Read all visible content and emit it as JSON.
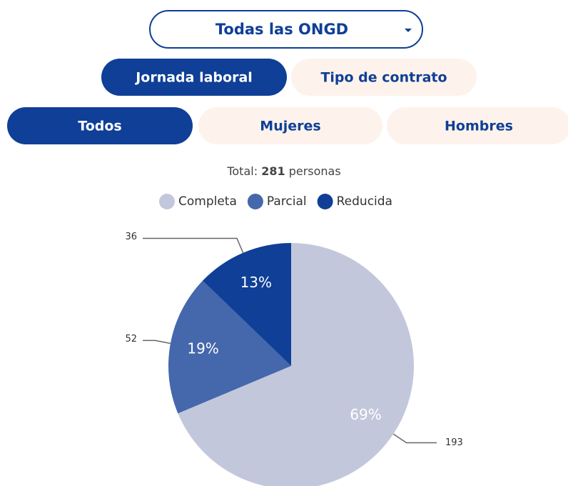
{
  "dropdown": {
    "label": "Todas las ONGD"
  },
  "tabs": [
    {
      "label": "Jornada laboral",
      "active": true
    },
    {
      "label": "Tipo de contrato",
      "active": false
    }
  ],
  "filters": [
    {
      "label": "Todos",
      "active": true
    },
    {
      "label": "Mujeres",
      "active": false
    },
    {
      "label": "Hombres",
      "active": false
    }
  ],
  "chart_data": {
    "type": "pie",
    "total_prefix": "Total:",
    "total": 281,
    "total_suffix": "personas",
    "categories": [
      "Completa",
      "Parcial",
      "Reducida"
    ],
    "values": [
      193,
      52,
      36
    ],
    "colors": [
      "#c3c7db",
      "#4567ab",
      "#0f3f96"
    ],
    "percentage_labels": [
      "69%",
      "19%",
      "13%"
    ],
    "legend": "top"
  }
}
